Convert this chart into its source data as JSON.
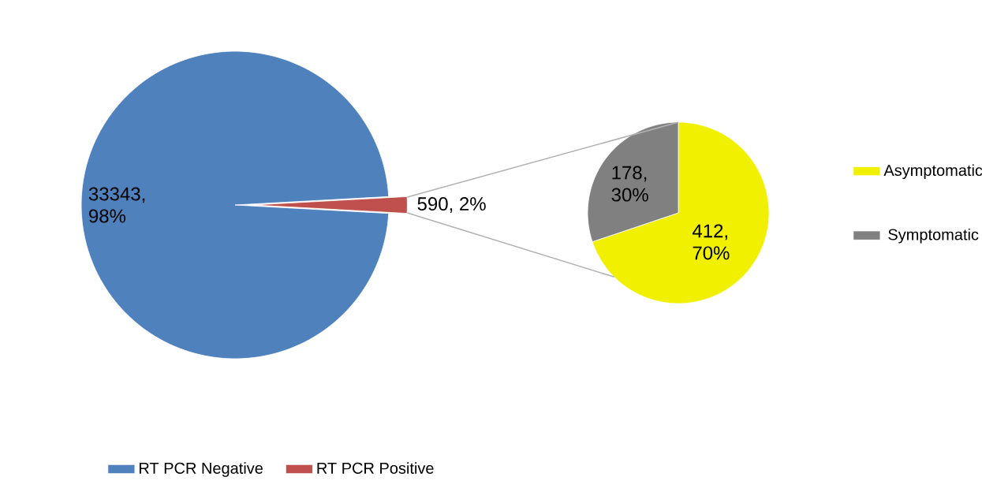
{
  "chart_data": [
    {
      "type": "pie",
      "categories": [
        "RT PCR Negative",
        "RT PCR Positive"
      ],
      "values": [
        33343,
        590
      ],
      "colors": [
        "#4f81bd",
        "#c0504d"
      ],
      "value_labels": [
        "33343, 98%",
        "590, 2%"
      ],
      "legend": "bottom"
    },
    {
      "type": "pie",
      "categories": [
        "Asymptomatic",
        "Symptomatic"
      ],
      "values": [
        412,
        178
      ],
      "colors": [
        "#f0f000",
        "#808080"
      ],
      "value_labels": [
        "412, 70%",
        "178, 30%"
      ],
      "legend": "right"
    }
  ]
}
